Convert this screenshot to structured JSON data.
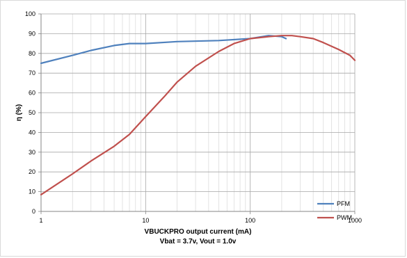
{
  "chart_data": {
    "type": "line",
    "title": "",
    "xlabel": "VBUCKPRO  output current (mA)",
    "xlabel_line2": "Vbat = 3.7v, Vout = 1.0v",
    "ylabel": "η (%)",
    "x_scale": "log",
    "xlim": [
      1,
      1000
    ],
    "ylim": [
      0,
      100
    ],
    "x_ticks": [
      "1",
      "10",
      "100",
      "1000"
    ],
    "y_ticks": [
      "0",
      "10",
      "20",
      "30",
      "40",
      "50",
      "60",
      "70",
      "80",
      "90",
      "100"
    ],
    "grid": true,
    "legend_position": "bottom-right",
    "series": [
      {
        "name": "PFM",
        "color": "#4f81bd",
        "x": [
          1,
          2,
          3,
          5,
          7,
          10,
          20,
          50,
          100,
          150,
          200,
          220
        ],
        "y": [
          75,
          79,
          81.5,
          84,
          85,
          85,
          86,
          86.5,
          87.5,
          89,
          88.5,
          87.5
        ]
      },
      {
        "name": "PWM",
        "color": "#c0504d",
        "x": [
          1,
          2,
          3,
          5,
          7,
          10,
          15,
          20,
          30,
          50,
          70,
          100,
          150,
          200,
          250,
          300,
          400,
          500,
          700,
          900,
          1000
        ],
        "y": [
          8.5,
          19,
          25.5,
          33,
          39,
          48,
          58,
          65.5,
          73.5,
          81,
          85,
          87.5,
          88.5,
          89,
          89,
          88.5,
          87.5,
          85.5,
          82,
          79,
          76.5
        ]
      }
    ]
  }
}
